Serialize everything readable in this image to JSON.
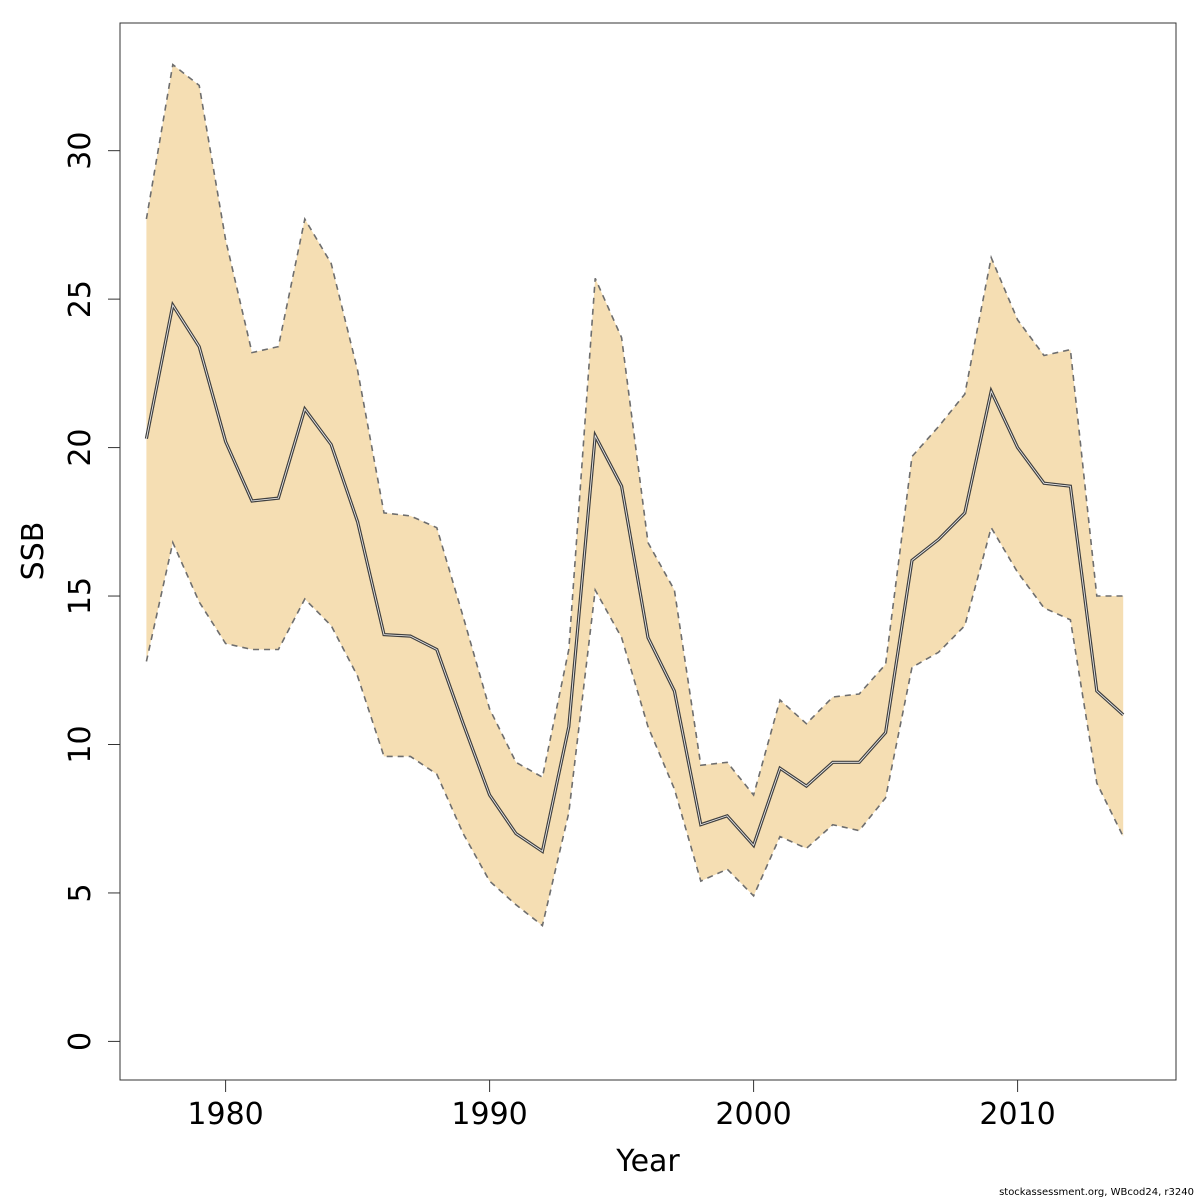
{
  "chart_data": {
    "type": "line",
    "title": "",
    "xlabel": "Year",
    "ylabel": "SSB",
    "xlim": [
      1976,
      2016
    ],
    "ylim": [
      -1.3,
      34.3
    ],
    "x_ticks": [
      1980,
      1990,
      2000,
      2010
    ],
    "y_ticks": [
      0,
      5,
      10,
      15,
      20,
      25,
      30
    ],
    "grid": false,
    "legend": "none",
    "colors": {
      "band": "#f5deb3",
      "line": "#404040",
      "bounds": "#6e6e6e"
    },
    "x": [
      1977,
      1978,
      1979,
      1980,
      1981,
      1982,
      1983,
      1984,
      1985,
      1986,
      1987,
      1988,
      1989,
      1990,
      1991,
      1992,
      1993,
      1994,
      1995,
      1996,
      1997,
      1998,
      1999,
      2000,
      2001,
      2002,
      2003,
      2004,
      2005,
      2006,
      2007,
      2008,
      2009,
      2010,
      2011,
      2012,
      2013,
      2014
    ],
    "series": [
      {
        "role": "estimate",
        "values": [
          20.3,
          24.8,
          23.4,
          20.2,
          18.2,
          18.3,
          21.3,
          20.1,
          17.5,
          13.7,
          13.65,
          13.2,
          10.7,
          8.3,
          7.0,
          6.4,
          10.6,
          20.4,
          18.7,
          13.6,
          11.8,
          7.3,
          7.6,
          6.6,
          9.2,
          8.6,
          9.4,
          9.4,
          10.4,
          16.2,
          16.9,
          17.8,
          21.9,
          20.0,
          18.8,
          18.7,
          11.8,
          11.0
        ]
      },
      {
        "role": "upper",
        "values": [
          27.7,
          32.9,
          32.2,
          27.0,
          23.2,
          23.4,
          27.7,
          26.2,
          22.6,
          17.8,
          17.7,
          17.3,
          14.3,
          11.2,
          9.4,
          8.9,
          13.2,
          25.7,
          23.7,
          16.8,
          15.2,
          9.3,
          9.4,
          8.3,
          11.5,
          10.7,
          11.6,
          11.7,
          12.7,
          19.7,
          20.7,
          21.8,
          26.4,
          24.3,
          23.1,
          23.3,
          15.0,
          15.0
        ]
      },
      {
        "role": "lower",
        "values": [
          12.8,
          16.8,
          14.8,
          13.4,
          13.2,
          13.2,
          14.9,
          14.0,
          12.3,
          9.6,
          9.6,
          9.0,
          7.0,
          5.4,
          4.6,
          3.9,
          7.7,
          15.2,
          13.6,
          10.6,
          8.5,
          5.4,
          5.8,
          4.9,
          6.9,
          6.5,
          7.3,
          7.1,
          8.2,
          12.6,
          13.1,
          14.0,
          17.3,
          15.8,
          14.6,
          14.2,
          8.7,
          6.9
        ]
      }
    ]
  },
  "footer": {
    "credit": "stockassessment.org, WBcod24, r3240"
  }
}
